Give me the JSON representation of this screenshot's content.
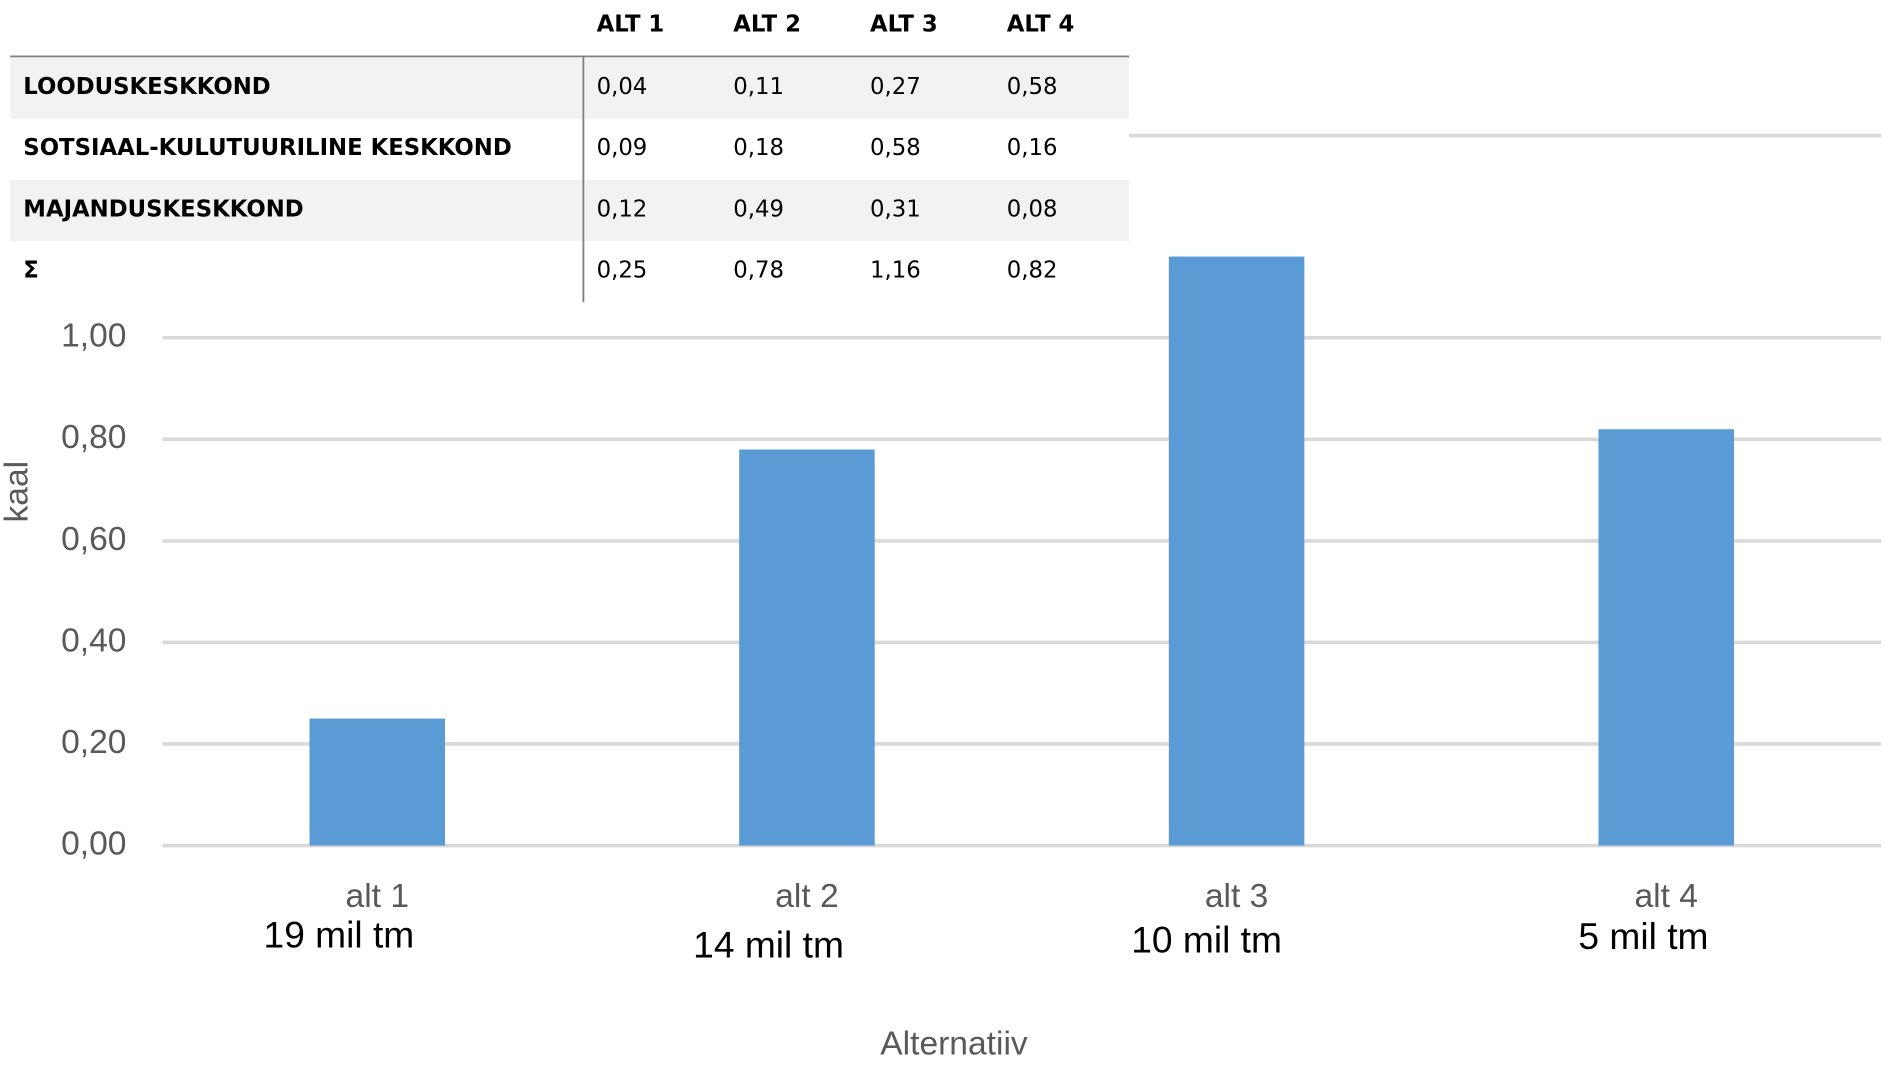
{
  "chart_data": {
    "type": "bar",
    "categories": [
      "alt 1",
      "alt 2",
      "alt 3",
      "alt 4"
    ],
    "values": [
      0.25,
      0.78,
      1.16,
      0.82
    ],
    "color": "#5b9bd5",
    "ylim": [
      0,
      1.2
    ],
    "yticks": [
      {
        "value": 0,
        "label": "0,00"
      },
      {
        "value": 0.2,
        "label": "0,20"
      },
      {
        "value": 0.4,
        "label": "0,40"
      },
      {
        "value": 0.6,
        "label": "0,60"
      },
      {
        "value": 0.8,
        "label": "0,80"
      },
      {
        "value": 1.0,
        "label": "1,00"
      }
    ],
    "grid": true,
    "y_label": "kaal",
    "x_label": "Alternatiiv",
    "annotations": [
      "19 mil tm",
      "14 mil tm",
      "10 mil tm",
      "5 mil tm"
    ]
  },
  "table": {
    "columns": [
      "ALT 1",
      "ALT 2",
      "ALT 3",
      "ALT 4"
    ],
    "rows": [
      {
        "label": "LOODUSKESKKOND",
        "values": [
          "0,04",
          "0,11",
          "0,27",
          "0,58"
        ]
      },
      {
        "label": "SOTSIAAL-KULUTUURILINE KESKKOND",
        "values": [
          "0,09",
          "0,18",
          "0,58",
          "0,16"
        ]
      },
      {
        "label": "MAJANDUSKESKKOND",
        "values": [
          "0,12",
          "0,49",
          "0,31",
          "0,08"
        ]
      },
      {
        "label": "Σ",
        "values": [
          "0,25",
          "0,78",
          "1,16",
          "0,82"
        ]
      }
    ]
  }
}
